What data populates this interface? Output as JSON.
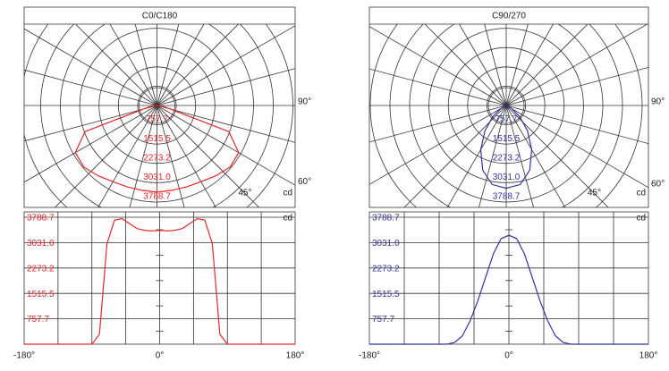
{
  "chart_data": [
    {
      "type": "polar",
      "title": "C0/C180",
      "color": "#e3262b",
      "x": [
        -180,
        -170,
        -160,
        -150,
        -140,
        -130,
        -120,
        -110,
        -100,
        -90,
        -80,
        -70,
        -60,
        -50,
        -40,
        -30,
        -20,
        -10,
        0,
        10,
        20,
        30,
        40,
        50,
        60,
        70,
        80,
        90,
        100,
        110,
        120,
        130,
        140,
        150,
        160,
        170,
        180
      ],
      "values": [
        0,
        0,
        0,
        0,
        0,
        0,
        0,
        0,
        0,
        0,
        300,
        3000,
        3700,
        3750,
        3600,
        3450,
        3400,
        3380,
        3400,
        3380,
        3400,
        3450,
        3600,
        3750,
        3700,
        3000,
        300,
        0,
        0,
        0,
        0,
        0,
        0,
        0,
        0,
        0,
        0
      ],
      "rlim": [
        0,
        3788.7
      ],
      "rticks": [
        757.7,
        1515.5,
        2273.2,
        {
          "value": 3031,
          "label": "3031.0"
        },
        3788.7
      ],
      "angle_labels": [
        {
          "value": 90,
          "label": "90°"
        },
        {
          "value": 60,
          "label": "60°"
        },
        {
          "value": 45,
          "label": "45°"
        }
      ],
      "unit": "cd"
    },
    {
      "type": "line",
      "color": "#e3262b",
      "x": [
        -180,
        -170,
        -160,
        -150,
        -140,
        -130,
        -120,
        -110,
        -100,
        -90,
        -80,
        -70,
        -60,
        -50,
        -40,
        -30,
        -20,
        -10,
        0,
        10,
        20,
        30,
        40,
        50,
        60,
        70,
        80,
        90,
        100,
        110,
        120,
        130,
        140,
        150,
        160,
        170,
        180
      ],
      "values": [
        0,
        0,
        0,
        0,
        0,
        0,
        0,
        0,
        0,
        0,
        300,
        3000,
        3700,
        3750,
        3600,
        3450,
        3400,
        3380,
        3400,
        3380,
        3400,
        3450,
        3600,
        3750,
        3700,
        3000,
        300,
        0,
        0,
        0,
        0,
        0,
        0,
        0,
        0,
        0,
        0
      ],
      "xlim": [
        -180,
        180
      ],
      "xticks": [
        {
          "value": -180,
          "label": "-180°"
        },
        {
          "value": 0,
          "label": "0°"
        },
        {
          "value": 180,
          "label": "180°"
        }
      ],
      "ylim": [
        0,
        3788.7
      ],
      "yticks": [
        757.7,
        1515.5,
        2273.2,
        {
          "value": 3031,
          "label": "3031.0"
        },
        3788.7
      ],
      "unit": "cd"
    },
    {
      "type": "polar",
      "title": "C90/270",
      "color": "#33339e",
      "x": [
        -180,
        -170,
        -160,
        -150,
        -140,
        -130,
        -120,
        -110,
        -100,
        -90,
        -80,
        -70,
        -60,
        -50,
        -40,
        -30,
        -20,
        -10,
        0,
        10,
        20,
        30,
        40,
        50,
        60,
        70,
        80,
        90,
        100,
        110,
        120,
        130,
        140,
        150,
        160,
        170,
        180
      ],
      "values": [
        0,
        0,
        0,
        0,
        0,
        0,
        0,
        0,
        0,
        0,
        0,
        50,
        250,
        700,
        1300,
        2000,
        2700,
        3150,
        3250,
        3150,
        2700,
        2000,
        1300,
        700,
        250,
        50,
        0,
        0,
        0,
        0,
        0,
        0,
        0,
        0,
        0,
        0,
        0
      ],
      "rlim": [
        0,
        3788.7
      ],
      "rticks": [
        757.7,
        1515.5,
        2273.2,
        {
          "value": 3031,
          "label": "3031.0"
        },
        3788.7
      ],
      "angle_labels": [
        {
          "value": 90,
          "label": "90°"
        },
        {
          "value": 60,
          "label": "60°"
        },
        {
          "value": 45,
          "label": "45°"
        }
      ],
      "unit": "cd"
    },
    {
      "type": "line",
      "color": "#33339e",
      "x": [
        -180,
        -170,
        -160,
        -150,
        -140,
        -130,
        -120,
        -110,
        -100,
        -90,
        -80,
        -70,
        -60,
        -50,
        -40,
        -30,
        -20,
        -10,
        0,
        10,
        20,
        30,
        40,
        50,
        60,
        70,
        80,
        90,
        100,
        110,
        120,
        130,
        140,
        150,
        160,
        170,
        180
      ],
      "values": [
        0,
        0,
        0,
        0,
        0,
        0,
        0,
        0,
        0,
        0,
        0,
        50,
        250,
        700,
        1300,
        2000,
        2700,
        3150,
        3250,
        3150,
        2700,
        2000,
        1300,
        700,
        250,
        50,
        0,
        0,
        0,
        0,
        0,
        0,
        0,
        0,
        0,
        0,
        0
      ],
      "xlim": [
        -180,
        180
      ],
      "xticks": [
        {
          "value": -180,
          "label": "-180°"
        },
        {
          "value": 0,
          "label": "0°"
        },
        {
          "value": 180,
          "label": "180°"
        }
      ],
      "ylim": [
        0,
        3788.7
      ],
      "yticks": [
        757.7,
        1515.5,
        2273.2,
        {
          "value": 3031,
          "label": "3031.0"
        },
        3788.7
      ],
      "unit": "cd"
    }
  ]
}
